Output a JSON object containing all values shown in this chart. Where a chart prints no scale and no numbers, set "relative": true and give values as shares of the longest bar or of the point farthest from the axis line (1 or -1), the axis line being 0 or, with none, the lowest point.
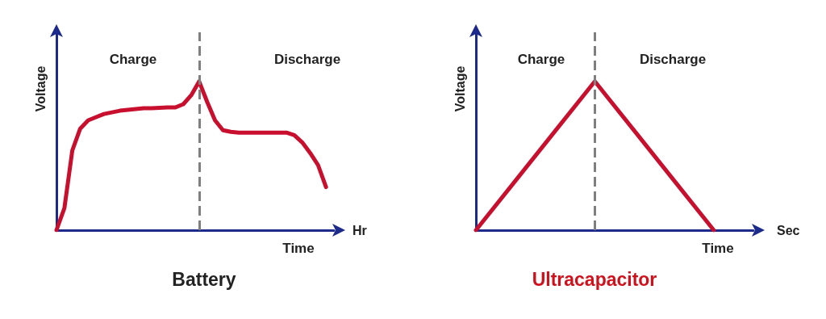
{
  "chart_data": [
    {
      "type": "line",
      "title": "Battery",
      "xlabel": "Time",
      "ylabel": "Voltage",
      "relative": true,
      "marker": "none",
      "annotations": [
        "Charge",
        "Discharge",
        "Hr"
      ],
      "categories": [
        null,
        null,
        null,
        null,
        null,
        null,
        null,
        null,
        null,
        null,
        null,
        null,
        null,
        null,
        null,
        null,
        null,
        null,
        null,
        null,
        null,
        null,
        null,
        null,
        null,
        null,
        null,
        null,
        null,
        null,
        null,
        null,
        null,
        null,
        null,
        null
      ],
      "series": [
        {
          "color": "#c8102e",
          "values": [
            0,
            0.148,
            0.536,
            0.683,
            0.738,
            0.76,
            0.781,
            0.792,
            0.803,
            0.809,
            0.814,
            0.82,
            0.82,
            0.822,
            0.825,
            0.825,
            0.847,
            0.907,
            1,
            0.863,
            0.738,
            0.672,
            0.661,
            0.656,
            0.656,
            0.656,
            0.656,
            0.656,
            0.656,
            0.656,
            0.639,
            0.59,
            0.519,
            0.437,
            0.29,
            null
          ]
        }
      ]
    },
    {
      "type": "line",
      "title": "Ultracapacitor",
      "xlabel": "Time",
      "ylabel": "Voltage",
      "relative": true,
      "marker": "none",
      "annotations": [
        "Charge",
        "Discharge",
        "Sec"
      ],
      "categories": [
        null,
        null,
        null,
        null,
        null,
        null,
        null,
        null
      ],
      "series": [
        {
          "color": "#c8102e",
          "values": [
            0,
            0.333,
            0.667,
            1,
            0.667,
            0.333,
            0,
            null
          ]
        }
      ]
    }
  ]
}
